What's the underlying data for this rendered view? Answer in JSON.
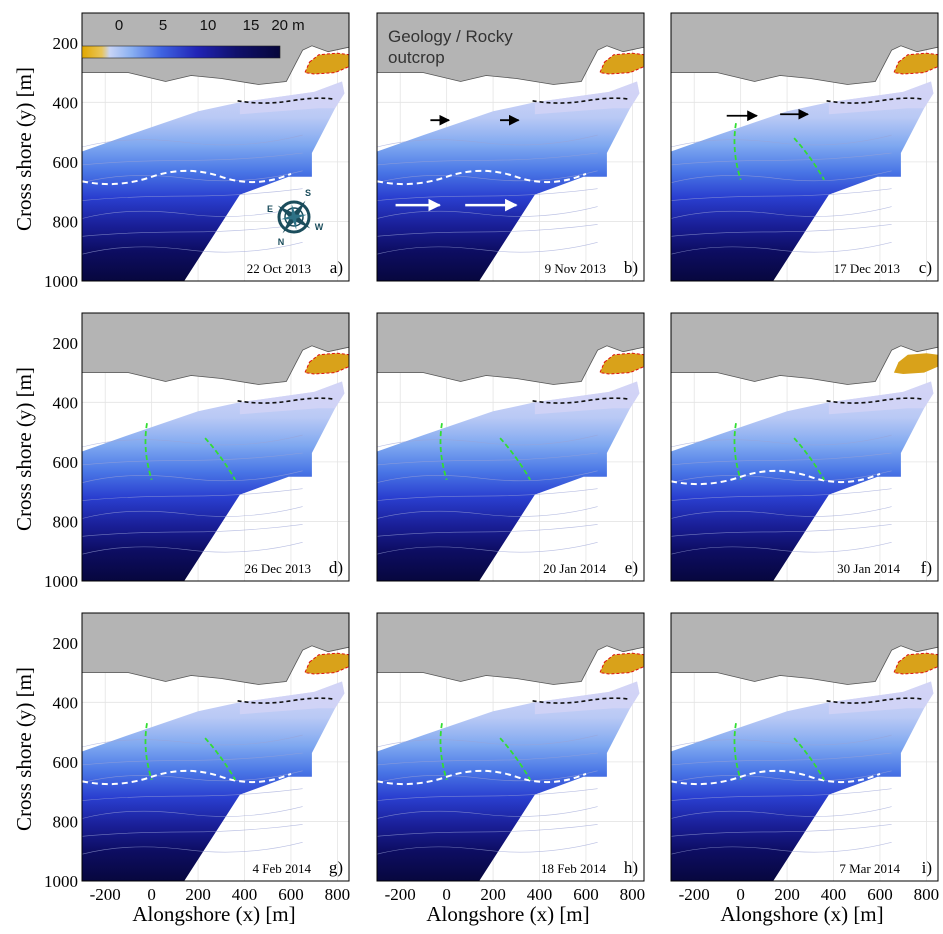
{
  "figure": {
    "ylabel": "Cross shore (y) [m]",
    "xlabel": "Alongshore (x) [m]",
    "colorbar": {
      "ticks": [
        "0",
        "5",
        "10",
        "15",
        "20 m"
      ]
    },
    "annotation": [
      "Geology / Rocky",
      "outcrop"
    ],
    "compass": {
      "n": "N",
      "s": "S",
      "e": "E",
      "w": "W"
    }
  },
  "chart_data": {
    "type": "heatmap",
    "description_free": true,
    "xlim": [
      -300,
      850
    ],
    "ylim": [
      1000,
      100
    ],
    "x_ticks": [
      -200,
      0,
      200,
      400,
      600,
      800
    ],
    "x_tick_labels": [
      "-200",
      "0",
      "200",
      "400",
      "600",
      "800"
    ],
    "y_ticks": [
      200,
      400,
      600,
      800,
      1000
    ],
    "y_tick_labels": [
      "200",
      "400",
      "600",
      "800",
      "1000"
    ],
    "colorbar_range": [
      0,
      20
    ],
    "panels": [
      {
        "letter": "a)",
        "date": "22 Oct 2013",
        "sandbar_white": true,
        "red_outline": true,
        "arrows": false,
        "compass": true
      },
      {
        "letter": "b)",
        "date": "9 Nov 2013",
        "sandbar_white": true,
        "red_outline": true,
        "arrows": true,
        "compass": false
      },
      {
        "letter": "c)",
        "date": "17 Dec 2013",
        "sandbar_white": false,
        "red_outline": true,
        "arrows": true,
        "compass": false
      },
      {
        "letter": "d)",
        "date": "26 Dec 2013",
        "sandbar_white": false,
        "red_outline": true,
        "arrows": false,
        "compass": false
      },
      {
        "letter": "e)",
        "date": "20 Jan 2014",
        "sandbar_white": false,
        "red_outline": true,
        "arrows": false,
        "compass": false
      },
      {
        "letter": "f)",
        "date": "30 Jan 2014",
        "sandbar_white": true,
        "red_outline": false,
        "arrows": false,
        "compass": false
      },
      {
        "letter": "g)",
        "date": "4 Feb 2014",
        "sandbar_white": true,
        "red_outline": true,
        "arrows": false,
        "compass": false
      },
      {
        "letter": "h)",
        "date": "18 Feb 2014",
        "sandbar_white": true,
        "red_outline": true,
        "arrows": false,
        "compass": false
      },
      {
        "letter": "i)",
        "date": "7 Mar 2014",
        "sandbar_white": true,
        "red_outline": true,
        "arrows": false,
        "compass": false
      }
    ]
  },
  "colors": {
    "land": "#b4b4b4",
    "land_edge": "#555555",
    "outcrop": "#d9a21a",
    "water_shallow": "#d2d4f6",
    "water_deep": "#0a0a4c",
    "bar_line": "#ffffff",
    "rip_line": "#33dd33",
    "contour_red": "#dd1111"
  }
}
